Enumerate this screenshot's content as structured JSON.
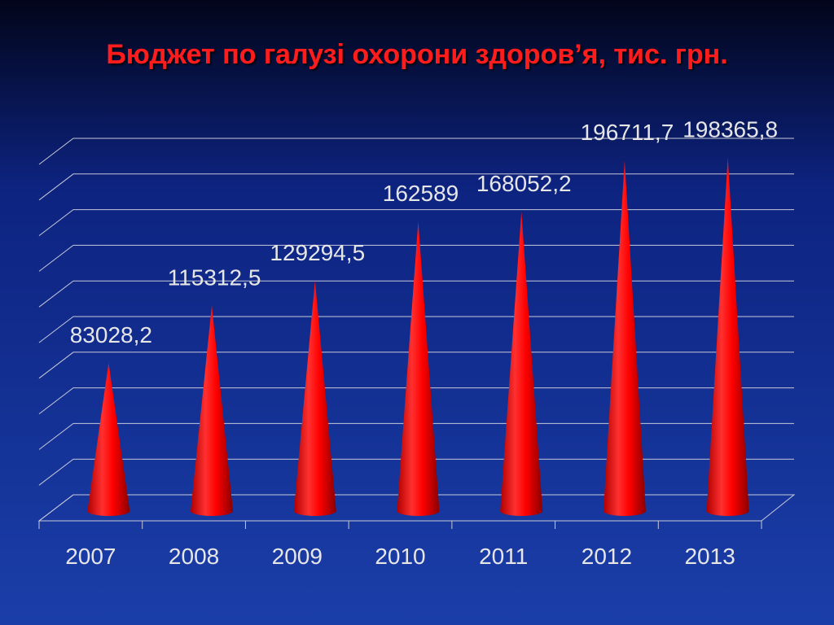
{
  "chart_data": {
    "type": "cone",
    "title": "Бюджет  по  галузі  охорони  здоров’я, тис. грн.",
    "categories": [
      "2007",
      "2008",
      "2009",
      "2010",
      "2011",
      "2012",
      "2013"
    ],
    "values": [
      83028.2,
      115312.5,
      129294.5,
      162589,
      168052.2,
      196711.7,
      198365.8
    ],
    "value_labels": [
      "83028,2",
      "115312,5",
      "129294,5",
      "162589",
      "168052,2",
      "196711,7",
      "198365,8"
    ],
    "color": "#ff0000",
    "ylim": [
      0,
      200000
    ],
    "yticks": [
      0,
      20000,
      40000,
      60000,
      80000,
      100000,
      120000,
      140000,
      160000,
      180000,
      200000
    ],
    "grid": true
  }
}
